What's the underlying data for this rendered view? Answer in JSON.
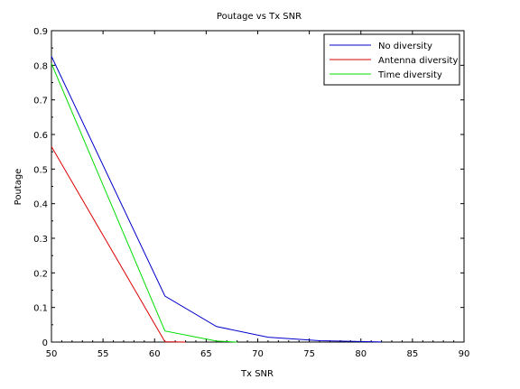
{
  "chart_data": {
    "type": "line",
    "title": "Poutage vs Tx SNR",
    "xlabel": "Tx SNR",
    "ylabel": "Poutage",
    "xlim": [
      50,
      90
    ],
    "ylim": [
      0,
      0.9
    ],
    "xticks": [
      "50",
      "55",
      "60",
      "65",
      "70",
      "75",
      "80",
      "85",
      "90"
    ],
    "yticks": [
      "0",
      "0.1",
      "0.2",
      "0.3",
      "0.4",
      "0.5",
      "0.6",
      "0.7",
      "0.8",
      "0.9"
    ],
    "legend_position": "top-right",
    "series": [
      {
        "name": "No diversity",
        "color": "#0000cc",
        "x": [
          50,
          61,
          66,
          71,
          76,
          81,
          82
        ],
        "y": [
          0.826,
          0.133,
          0.045,
          0.014,
          0.004,
          0.001,
          0.0003
        ]
      },
      {
        "name": "Antenna diversity",
        "color": "#dd0000",
        "x": [
          50,
          61,
          63
        ],
        "y": [
          0.565,
          0.001,
          0.0
        ]
      },
      {
        "name": "Time diversity",
        "color": "#00dd00",
        "x": [
          50,
          61,
          66,
          68
        ],
        "y": [
          0.805,
          0.032,
          0.003,
          0.0
        ]
      }
    ]
  }
}
